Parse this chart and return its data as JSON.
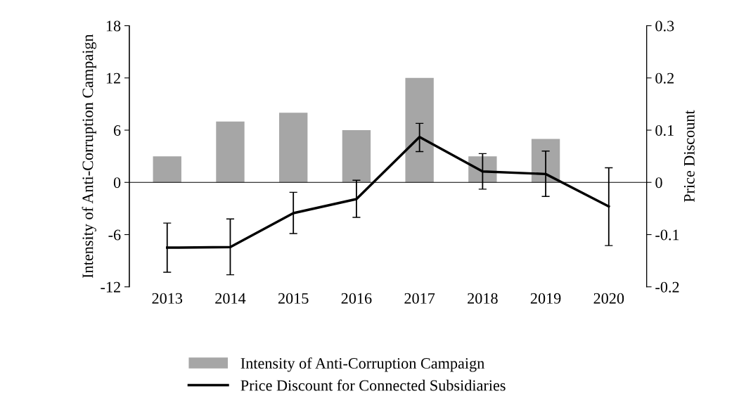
{
  "chart_data": {
    "type": "bar",
    "categories": [
      "2013",
      "2014",
      "2015",
      "2016",
      "2017",
      "2018",
      "2019",
      "2020"
    ],
    "ylabel": "Intensity of Anti-Corruption Campaign",
    "y2label": "Price Discount",
    "ylim": [
      -12,
      18
    ],
    "yticks": [
      -12,
      -6,
      0,
      6,
      12,
      18
    ],
    "y2lim": [
      -0.2,
      0.3
    ],
    "y2ticks": [
      -0.2,
      -0.1,
      0,
      0.1,
      0.2,
      0.3
    ],
    "legend": "bottom",
    "series": [
      {
        "name": "Intensity of Anti-Corruption Campaign",
        "color": "#a6a6a6",
        "values": [
          3,
          7,
          8,
          6,
          12,
          3,
          5,
          0
        ]
      },
      {
        "name": "Price Discount for Connected Subsidiaries",
        "type": "line",
        "axis": "y2",
        "color": "#000000",
        "marker": "none",
        "line_style": "solid",
        "values": [
          -0.125,
          -0.124,
          -0.059,
          -0.032,
          0.087,
          0.021,
          0.016,
          -0.046
        ],
        "errors": [
          [
            -0.172,
            -0.078
          ],
          [
            -0.177,
            -0.07
          ],
          [
            -0.098,
            -0.019
          ],
          [
            -0.067,
            0.004
          ],
          [
            0.059,
            0.113
          ],
          [
            -0.013,
            0.055
          ],
          [
            -0.027,
            0.06
          ],
          [
            -0.121,
            0.028
          ]
        ]
      }
    ]
  }
}
